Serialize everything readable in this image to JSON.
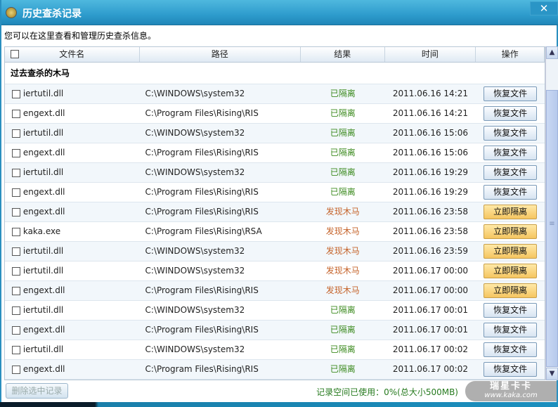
{
  "window": {
    "title": "历史查杀记录",
    "close_icon": "close-icon"
  },
  "description": "您可以在这里查看和管理历史查杀信息。",
  "table": {
    "headers": [
      "文件名",
      "路径",
      "结果",
      "时间",
      "操作"
    ],
    "group_title": "过去查杀的木马",
    "rows": [
      {
        "file": "iertutil.dll",
        "path": "C:\\WINDOWS\\system32",
        "result": "已隔离",
        "status": "ok",
        "time": "2011.06.16 14:21",
        "action": "恢复文件"
      },
      {
        "file": "engext.dll",
        "path": "C:\\Program Files\\Rising\\RIS",
        "result": "已隔离",
        "status": "ok",
        "time": "2011.06.16 14:21",
        "action": "恢复文件"
      },
      {
        "file": "iertutil.dll",
        "path": "C:\\WINDOWS\\system32",
        "result": "已隔离",
        "status": "ok",
        "time": "2011.06.16 15:06",
        "action": "恢复文件"
      },
      {
        "file": "engext.dll",
        "path": "C:\\Program Files\\Rising\\RIS",
        "result": "已隔离",
        "status": "ok",
        "time": "2011.06.16 15:06",
        "action": "恢复文件"
      },
      {
        "file": "iertutil.dll",
        "path": "C:\\WINDOWS\\system32",
        "result": "已隔离",
        "status": "ok",
        "time": "2011.06.16 19:29",
        "action": "恢复文件"
      },
      {
        "file": "engext.dll",
        "path": "C:\\Program Files\\Rising\\RIS",
        "result": "已隔离",
        "status": "ok",
        "time": "2011.06.16 19:29",
        "action": "恢复文件"
      },
      {
        "file": "engext.dll",
        "path": "C:\\Program Files\\Rising\\RIS",
        "result": "发现木马",
        "status": "bad",
        "time": "2011.06.16 23:58",
        "action": "立即隔离"
      },
      {
        "file": "kaka.exe",
        "path": "C:\\Program Files\\Rising\\RSA",
        "result": "发现木马",
        "status": "bad",
        "time": "2011.06.16 23:58",
        "action": "立即隔离"
      },
      {
        "file": "iertutil.dll",
        "path": "C:\\WINDOWS\\system32",
        "result": "发现木马",
        "status": "bad",
        "time": "2011.06.16 23:59",
        "action": "立即隔离"
      },
      {
        "file": "iertutil.dll",
        "path": "C:\\WINDOWS\\system32",
        "result": "发现木马",
        "status": "bad",
        "time": "2011.06.17 00:00",
        "action": "立即隔离"
      },
      {
        "file": "engext.dll",
        "path": "C:\\Program Files\\Rising\\RIS",
        "result": "发现木马",
        "status": "bad",
        "time": "2011.06.17 00:00",
        "action": "立即隔离"
      },
      {
        "file": "iertutil.dll",
        "path": "C:\\WINDOWS\\system32",
        "result": "已隔离",
        "status": "ok",
        "time": "2011.06.17 00:01",
        "action": "恢复文件"
      },
      {
        "file": "engext.dll",
        "path": "C:\\Program Files\\Rising\\RIS",
        "result": "已隔离",
        "status": "ok",
        "time": "2011.06.17 00:01",
        "action": "恢复文件"
      },
      {
        "file": "iertutil.dll",
        "path": "C:\\WINDOWS\\system32",
        "result": "已隔离",
        "status": "ok",
        "time": "2011.06.17 00:02",
        "action": "恢复文件"
      },
      {
        "file": "engext.dll",
        "path": "C:\\Program Files\\Rising\\RIS",
        "result": "已隔离",
        "status": "ok",
        "time": "2011.06.17 00:02",
        "action": "恢复文件"
      }
    ]
  },
  "footer": {
    "delete_label": "删除选中记录",
    "usage": "记录空间已使用：0%(总大小500MB)"
  },
  "watermark": {
    "line1": "瑞星卡卡",
    "line2": "www.kaka.com"
  },
  "colors": {
    "ok": "#3b8a1e",
    "bad": "#c5632a",
    "titlebar": "#2e9ccd"
  }
}
